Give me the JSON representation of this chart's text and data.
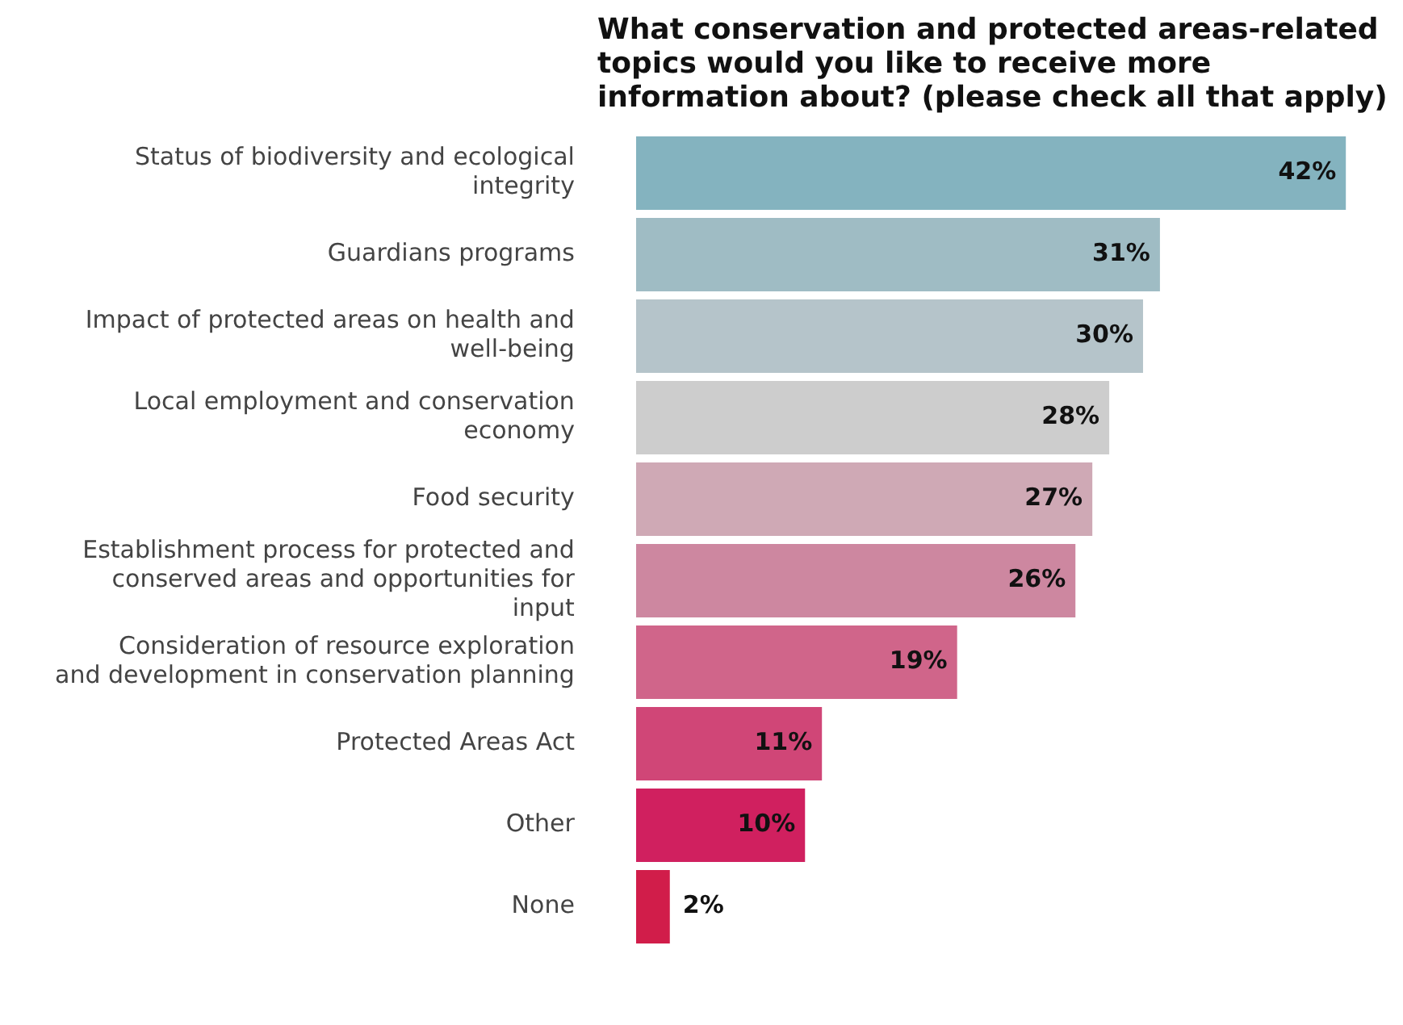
{
  "chart_data": {
    "type": "bar",
    "orientation": "horizontal",
    "title": "What conservation and protected areas-related topics would you like to receive more information about? (please check all that apply)",
    "categories": [
      "Status of biodiversity and ecological integrity",
      "Guardians programs",
      "Impact of protected areas on health and well-being",
      "Local employment and conservation economy",
      "Food security",
      "Establishment process for protected and conserved areas and opportunities for input",
      "Consideration of resource exploration and development in conservation planning",
      "Protected Areas Act",
      "Other",
      "None"
    ],
    "values": [
      42,
      31,
      30,
      28,
      27,
      26,
      19,
      11,
      10,
      2
    ],
    "value_labels": [
      "42%",
      "31%",
      "30%",
      "28%",
      "27%",
      "26%",
      "19%",
      "11%",
      "10%",
      "2%"
    ],
    "colors": [
      "#84b3bf",
      "#9fbcc4",
      "#b5c4ca",
      "#cdcdcd",
      "#cfa9b5",
      "#cd87a0",
      "#d0658a",
      "#d04677",
      "#d0205f",
      "#d11d4a"
    ],
    "grid": false,
    "legend": false,
    "tick_labels": "y"
  }
}
